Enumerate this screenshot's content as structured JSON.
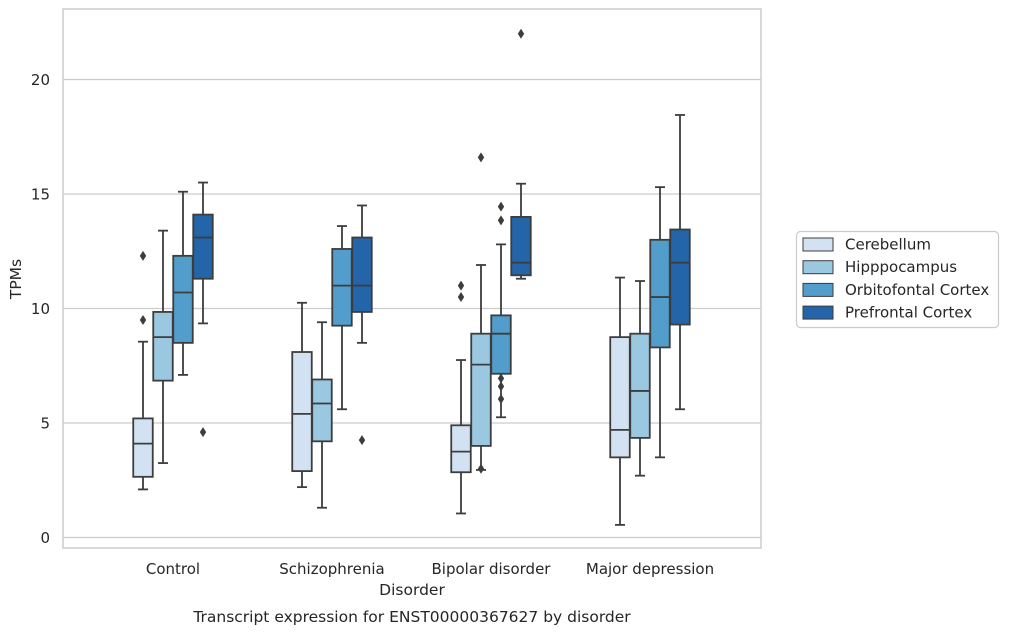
{
  "chart_data": {
    "type": "boxplot",
    "title": "",
    "caption": "Transcript expression for ENST00000367627 by disorder",
    "xlabel": "Disorder",
    "ylabel": "TPMs",
    "ylim": [
      -0.45,
      23.0
    ],
    "yticks": [
      0,
      5,
      10,
      15,
      20
    ],
    "grid": "horizontal",
    "legend_position": "right",
    "categories": [
      "Control",
      "Schizophrenia",
      "Bipolar disorder",
      "Major depression"
    ],
    "series": [
      {
        "name": "Cerebellum",
        "color": "#d2e2f2",
        "boxes": [
          {
            "whislo": 2.1,
            "q1": 2.65,
            "med": 4.1,
            "q3": 5.2,
            "whishi": 8.55,
            "fliers": [
              9.5,
              12.3
            ]
          },
          {
            "whislo": 2.2,
            "q1": 2.9,
            "med": 5.4,
            "q3": 8.1,
            "whishi": 10.25,
            "fliers": []
          },
          {
            "whislo": 1.05,
            "q1": 2.85,
            "med": 3.75,
            "q3": 4.9,
            "whishi": 7.75,
            "fliers": [
              10.5,
              11.0
            ]
          },
          {
            "whislo": 0.55,
            "q1": 3.5,
            "med": 4.7,
            "q3": 8.75,
            "whishi": 11.35,
            "fliers": []
          }
        ]
      },
      {
        "name": "Hipppocampus",
        "color": "#9ac8e0",
        "boxes": [
          {
            "whislo": 3.25,
            "q1": 6.85,
            "med": 8.75,
            "q3": 9.85,
            "whishi": 13.4,
            "fliers": []
          },
          {
            "whislo": 1.3,
            "q1": 4.2,
            "med": 5.85,
            "q3": 6.9,
            "whishi": 9.4,
            "fliers": []
          },
          {
            "whislo": 2.95,
            "q1": 4.0,
            "med": 7.55,
            "q3": 8.9,
            "whishi": 11.9,
            "fliers": [
              3.0,
              16.6
            ]
          },
          {
            "whislo": 2.7,
            "q1": 4.35,
            "med": 6.4,
            "q3": 8.9,
            "whishi": 11.2,
            "fliers": []
          }
        ]
      },
      {
        "name": "Orbitofontal Cortex",
        "color": "#529dcc",
        "boxes": [
          {
            "whislo": 7.1,
            "q1": 8.5,
            "med": 10.7,
            "q3": 12.3,
            "whishi": 15.1,
            "fliers": []
          },
          {
            "whislo": 5.6,
            "q1": 9.25,
            "med": 11.0,
            "q3": 12.6,
            "whishi": 13.6,
            "fliers": []
          },
          {
            "whislo": 5.25,
            "q1": 7.15,
            "med": 8.9,
            "q3": 9.7,
            "whishi": 12.8,
            "fliers": [
              6.05,
              6.6,
              6.95,
              13.85,
              14.45
            ]
          },
          {
            "whislo": 3.5,
            "q1": 8.3,
            "med": 10.5,
            "q3": 13.0,
            "whishi": 15.3,
            "fliers": []
          }
        ]
      },
      {
        "name": "Prefrontal Cortex",
        "color": "#2464a8",
        "boxes": [
          {
            "whislo": 9.35,
            "q1": 11.3,
            "med": 13.1,
            "q3": 14.1,
            "whishi": 15.5,
            "fliers": [
              4.6
            ]
          },
          {
            "whislo": 8.5,
            "q1": 9.85,
            "med": 11.0,
            "q3": 13.1,
            "whishi": 14.5,
            "fliers": [
              4.25
            ]
          },
          {
            "whislo": 11.3,
            "q1": 11.45,
            "med": 12.0,
            "q3": 14.0,
            "whishi": 15.45,
            "fliers": [
              22.0
            ]
          },
          {
            "whislo": 5.6,
            "q1": 9.3,
            "med": 12.0,
            "q3": 13.45,
            "whishi": 18.45,
            "fliers": []
          }
        ]
      }
    ]
  }
}
